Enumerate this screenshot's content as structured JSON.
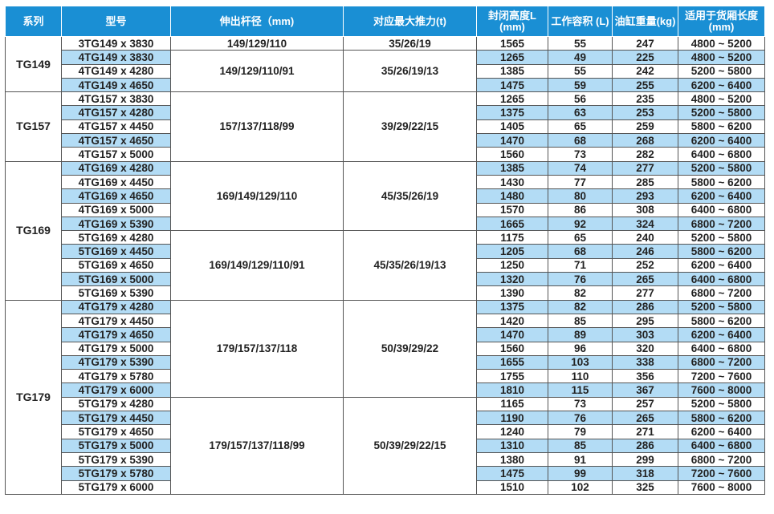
{
  "header": [
    "系列",
    "型号",
    "伸出杆径（mm)",
    "对应最大推力(t)",
    "封闭高度L (mm)",
    "工作容积 (L)",
    "油缸重量(kg)",
    "适用于货厢长度(mm)"
  ],
  "colors": {
    "header": "#1a8fd4",
    "stripe": "#b3dcf5"
  },
  "series": [
    {
      "name": "TG149",
      "groups": [
        {
          "rod": "149/129/110",
          "force": "35/26/19",
          "rows": [
            [
              "3TG149 x 3830",
              "1565",
              "55",
              "247",
              "4800 ~ 5200"
            ]
          ]
        },
        {
          "rod": "149/129/110/91",
          "force": "35/26/19/13",
          "rows": [
            [
              "4TG149 x 3830",
              "1265",
              "49",
              "225",
              "4800 ~ 5200"
            ],
            [
              "4TG149 x 4280",
              "1385",
              "55",
              "242",
              "5200 ~ 5800"
            ],
            [
              "4TG149 x 4650",
              "1475",
              "59",
              "255",
              "6200 ~ 6400"
            ]
          ]
        }
      ]
    },
    {
      "name": "TG157",
      "groups": [
        {
          "rod": "157/137/118/99",
          "force": "39/29/22/15",
          "rows": [
            [
              "4TG157 x 3830",
              "1265",
              "56",
              "235",
              "4800 ~ 5200"
            ],
            [
              "4TG157 x 4280",
              "1375",
              "63",
              "253",
              "5200 ~ 5800"
            ],
            [
              "4TG157 x 4450",
              "1405",
              "65",
              "259",
              "5800 ~ 6200"
            ],
            [
              "4TG157 x 4650",
              "1470",
              "68",
              "268",
              "6200 ~ 6400"
            ],
            [
              "4TG157 x 5000",
              "1560",
              "73",
              "282",
              "6400 ~ 6800"
            ]
          ]
        }
      ]
    },
    {
      "name": "TG169",
      "groups": [
        {
          "rod": "169/149/129/110",
          "force": "45/35/26/19",
          "rows": [
            [
              "4TG169 x 4280",
              "1385",
              "74",
              "277",
              "5200 ~ 5800"
            ],
            [
              "4TG169 x 4450",
              "1430",
              "77",
              "285",
              "5800 ~ 6200"
            ],
            [
              "4TG169 x 4650",
              "1480",
              "80",
              "293",
              "6200 ~ 6400"
            ],
            [
              "4TG169 x 5000",
              "1570",
              "86",
              "308",
              "6400 ~ 6800"
            ],
            [
              "4TG169 x 5390",
              "1665",
              "92",
              "324",
              "6800 ~ 7200"
            ]
          ]
        },
        {
          "rod": "169/149/129/110/91",
          "force": "45/35/26/19/13",
          "rows": [
            [
              "5TG169 x 4280",
              "1175",
              "65",
              "240",
              "5200 ~ 5800"
            ],
            [
              "5TG169 x 4450",
              "1205",
              "68",
              "246",
              "5800 ~ 6200"
            ],
            [
              "5TG169 x 4650",
              "1250",
              "71",
              "252",
              "6200 ~ 6400"
            ],
            [
              "5TG169 x 5000",
              "1320",
              "76",
              "265",
              "6400 ~ 6800"
            ],
            [
              "5TG169 x 5390",
              "1390",
              "82",
              "277",
              "6800 ~ 7200"
            ]
          ]
        }
      ]
    },
    {
      "name": "TG179",
      "groups": [
        {
          "rod": "179/157/137/118",
          "force": "50/39/29/22",
          "rows": [
            [
              "4TG179 x 4280",
              "1375",
              "82",
              "286",
              "5200 ~ 5800"
            ],
            [
              "4TG179 x 4450",
              "1420",
              "85",
              "295",
              "5800 ~ 6200"
            ],
            [
              "4TG179 x 4650",
              "1470",
              "89",
              "303",
              "6200 ~ 6400"
            ],
            [
              "4TG179 x 5000",
              "1560",
              "96",
              "320",
              "6400 ~ 6800"
            ],
            [
              "4TG179 x 5390",
              "1655",
              "103",
              "338",
              "6800 ~ 7200"
            ],
            [
              "4TG179 x 5780",
              "1755",
              "110",
              "356",
              "7200 ~ 7600"
            ],
            [
              "4TG179 x 6000",
              "1810",
              "115",
              "367",
              "7600 ~ 8000"
            ]
          ]
        },
        {
          "rod": "179/157/137/118/99",
          "force": "50/39/29/22/15",
          "rows": [
            [
              "5TG179 x 4280",
              "1165",
              "73",
              "257",
              "5200 ~ 5800"
            ],
            [
              "5TG179 x 4450",
              "1190",
              "76",
              "265",
              "5800 ~ 6200"
            ],
            [
              "5TG179 x 4650",
              "1240",
              "79",
              "271",
              "6200 ~ 6400"
            ],
            [
              "5TG179 x 5000",
              "1310",
              "85",
              "286",
              "6400 ~ 6800"
            ],
            [
              "5TG179 x 5390",
              "1380",
              "91",
              "299",
              "6800 ~ 7200"
            ],
            [
              "5TG179 x 5780",
              "1475",
              "99",
              "318",
              "7200 ~ 7600"
            ],
            [
              "5TG179 x 6000",
              "1510",
              "102",
              "325",
              "7600 ~ 8000"
            ]
          ]
        }
      ]
    }
  ]
}
